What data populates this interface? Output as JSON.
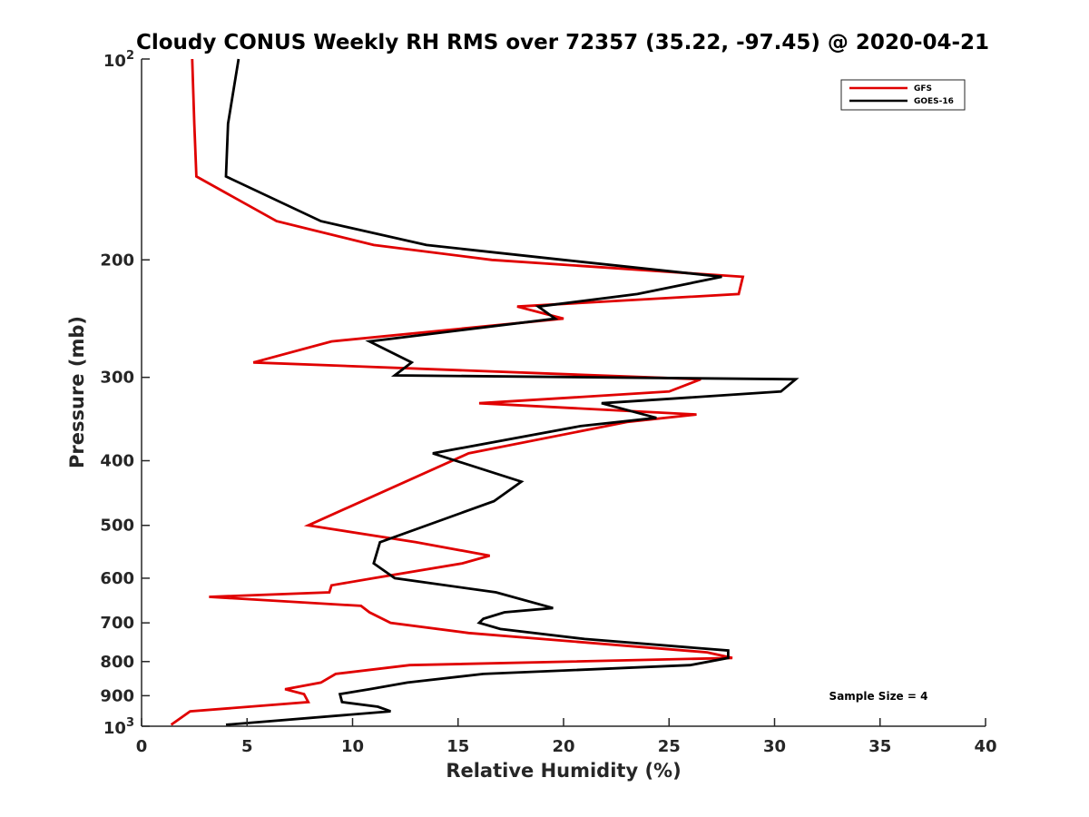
{
  "chart_data": {
    "type": "line",
    "title": "Cloudy CONUS Weekly RH RMS over 72357 (35.22, -97.45) @ 2020-04-21",
    "xlabel": "Relative Humidity (%)",
    "ylabel": "Pressure (mb)",
    "xlim": [
      0,
      40
    ],
    "ylim": [
      100,
      1000
    ],
    "y_scale": "log",
    "y_reversed": true,
    "grid": false,
    "legend_position": "top-right",
    "x_ticks": [
      "0",
      "5",
      "10",
      "15",
      "20",
      "25",
      "30",
      "35",
      "40"
    ],
    "y_ticks": [
      {
        "value": 100,
        "base": "10",
        "exp": "2"
      },
      {
        "value": 200,
        "label": "200"
      },
      {
        "value": 300,
        "label": "300"
      },
      {
        "value": 400,
        "label": "400"
      },
      {
        "value": 500,
        "label": "500"
      },
      {
        "value": 600,
        "label": "600"
      },
      {
        "value": 700,
        "label": "700"
      },
      {
        "value": 800,
        "label": "800"
      },
      {
        "value": 900,
        "label": "900"
      },
      {
        "value": 1000,
        "base": "10",
        "exp": "3"
      }
    ],
    "annotation": "Sample Size = 4",
    "series": [
      {
        "name": "GFS",
        "color": "#e00000",
        "points": [
          [
            2.4,
            100
          ],
          [
            2.5,
            125
          ],
          [
            2.6,
            150
          ],
          [
            6.4,
            175
          ],
          [
            11,
            190
          ],
          [
            16.6,
            200
          ],
          [
            28.5,
            212
          ],
          [
            28.3,
            225
          ],
          [
            17.8,
            235
          ],
          [
            20,
            245
          ],
          [
            9,
            265
          ],
          [
            5.3,
            285
          ],
          [
            26.5,
            302
          ],
          [
            25,
            315
          ],
          [
            16,
            328
          ],
          [
            26.3,
            341
          ],
          [
            23,
            350
          ],
          [
            15.5,
            390
          ],
          [
            7.9,
            500
          ],
          [
            13,
            530
          ],
          [
            16.5,
            555
          ],
          [
            15.2,
            570
          ],
          [
            11,
            600
          ],
          [
            9,
            615
          ],
          [
            8.9,
            630
          ],
          [
            3.2,
            640
          ],
          [
            10.4,
            660
          ],
          [
            10.8,
            675
          ],
          [
            11.8,
            700
          ],
          [
            15.5,
            725
          ],
          [
            26.8,
            775
          ],
          [
            28,
            790
          ],
          [
            12.7,
            810
          ],
          [
            9.2,
            835
          ],
          [
            8.5,
            860
          ],
          [
            6.8,
            880
          ],
          [
            7.7,
            895
          ],
          [
            7.9,
            920
          ],
          [
            2.3,
            950
          ],
          [
            1.4,
            995
          ]
        ]
      },
      {
        "name": "GOES-16",
        "color": "#000000",
        "points": [
          [
            4.6,
            100
          ],
          [
            4.1,
            125
          ],
          [
            4.0,
            150
          ],
          [
            8.5,
            175
          ],
          [
            13.5,
            190
          ],
          [
            20,
            200
          ],
          [
            27.5,
            212
          ],
          [
            23.5,
            225
          ],
          [
            18.8,
            235
          ],
          [
            19.6,
            245
          ],
          [
            10.8,
            265
          ],
          [
            12.8,
            285
          ],
          [
            12,
            298
          ],
          [
            31,
            302
          ],
          [
            30.3,
            315
          ],
          [
            21.8,
            328
          ],
          [
            24.4,
            345
          ],
          [
            20.8,
            355
          ],
          [
            13.8,
            390
          ],
          [
            18,
            430
          ],
          [
            16.7,
            460
          ],
          [
            11.3,
            530
          ],
          [
            11,
            570
          ],
          [
            12,
            600
          ],
          [
            16.8,
            630
          ],
          [
            19.5,
            665
          ],
          [
            17.2,
            675
          ],
          [
            16.2,
            690
          ],
          [
            16,
            700
          ],
          [
            17,
            715
          ],
          [
            21,
            740
          ],
          [
            27.8,
            770
          ],
          [
            27.8,
            790
          ],
          [
            26,
            810
          ],
          [
            16.2,
            835
          ],
          [
            12.6,
            860
          ],
          [
            10.8,
            880
          ],
          [
            9.4,
            895
          ],
          [
            9.5,
            920
          ],
          [
            11.2,
            935
          ],
          [
            11.8,
            950
          ],
          [
            4,
            995
          ]
        ]
      }
    ]
  }
}
